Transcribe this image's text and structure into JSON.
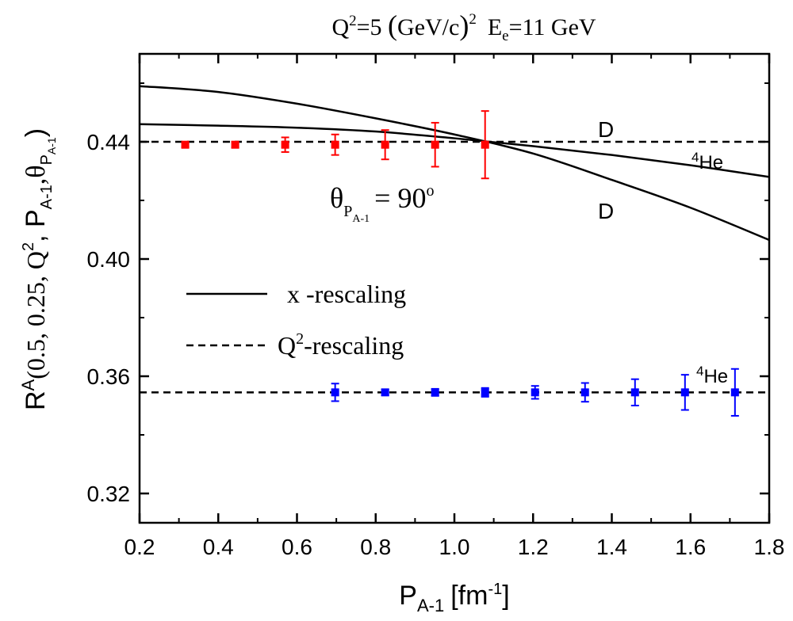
{
  "chart_data": {
    "type": "line",
    "title": {
      "q_base": "Q",
      "q_exp": "2",
      "eq1": "=5 ",
      "lparen": "(",
      "unit": "GeV/c",
      "rparen": ")",
      "unit_exp": "2",
      "e_base": "E",
      "e_sub": "e",
      "e_value": "=11 GeV"
    },
    "xlabel": {
      "base": "P",
      "sub": "A-1",
      "unit": "[fm",
      "unit_exp": "-1",
      "close": "]"
    },
    "ylabel": {
      "r": "R",
      "r_sup": "A",
      "args": "(0.5, 0.25, Q",
      "args_sup": "2",
      "comma": ", P",
      "p_sub": "A-1",
      "theta_part": ",θ",
      "theta_sub": "P",
      "theta_subsub": "A-1",
      "close": ")"
    },
    "xlim": [
      0.2,
      1.8
    ],
    "ylim": [
      0.31,
      0.47
    ],
    "xticks": [
      "0.2",
      "0.4",
      "0.6",
      "0.8",
      "1.0",
      "1.2",
      "1.4",
      "1.6",
      "1.8"
    ],
    "yticks": [
      "0.32",
      "0.36",
      "0.40",
      "0.44"
    ],
    "legend": {
      "position": "center-left",
      "solid_label": "x -rescaling",
      "dashed_base": "Q",
      "dashed_exp": "2",
      "dashed_rest": "-rescaling"
    },
    "annotations": {
      "theta_main": "θ",
      "theta_sub": "P",
      "theta_subsub": "A-1",
      "theta_value": "= 90",
      "theta_deg": "o",
      "d_upper": "D",
      "he_upper_num": "4",
      "he_upper_text": "He",
      "d_lower": "D",
      "he_lower_num": "4",
      "he_lower_text": "He"
    },
    "series": [
      {
        "name": "D x-rescaling",
        "style": "solid",
        "x": [
          0.2,
          0.4,
          0.6,
          0.8,
          1.0,
          1.2,
          1.4,
          1.6,
          1.8
        ],
        "y": [
          0.459,
          0.457,
          0.453,
          0.448,
          0.4425,
          0.436,
          0.427,
          0.4175,
          0.4065
        ]
      },
      {
        "name": "4He x-rescaling",
        "style": "solid",
        "x": [
          0.2,
          0.4,
          0.6,
          0.8,
          1.0,
          1.2,
          1.4,
          1.6,
          1.8
        ],
        "y": [
          0.446,
          0.4455,
          0.4448,
          0.4435,
          0.4412,
          0.4385,
          0.4355,
          0.432,
          0.428
        ]
      },
      {
        "name": "Q2-rescaling upper",
        "style": "dashed",
        "x": [
          0.2,
          1.8
        ],
        "y": [
          0.44,
          0.44
        ]
      },
      {
        "name": "Q2-rescaling lower",
        "style": "dashed",
        "x": [
          0.2,
          1.8
        ],
        "y": [
          0.3545,
          0.3545
        ]
      },
      {
        "name": "Red data",
        "style": "points",
        "color": "#ff0000",
        "x": [
          0.316,
          0.443,
          0.57,
          0.697,
          0.824,
          0.951,
          1.078
        ],
        "y": [
          0.439,
          0.439,
          0.439,
          0.439,
          0.439,
          0.439,
          0.439
        ],
        "err": [
          0.0008,
          0.001,
          0.0025,
          0.0035,
          0.005,
          0.0075,
          0.0115
        ]
      },
      {
        "name": "Blue data",
        "style": "points",
        "color": "#0000ff",
        "x": [
          0.697,
          0.824,
          0.951,
          1.078,
          1.205,
          1.332,
          1.459,
          1.586,
          1.713
        ],
        "y": [
          0.3545,
          0.3545,
          0.3545,
          0.3545,
          0.3545,
          0.3545,
          0.3545,
          0.3545,
          0.3545
        ],
        "err": [
          0.003,
          0.001,
          0.0012,
          0.0015,
          0.0022,
          0.0032,
          0.0045,
          0.006,
          0.008
        ]
      }
    ]
  }
}
